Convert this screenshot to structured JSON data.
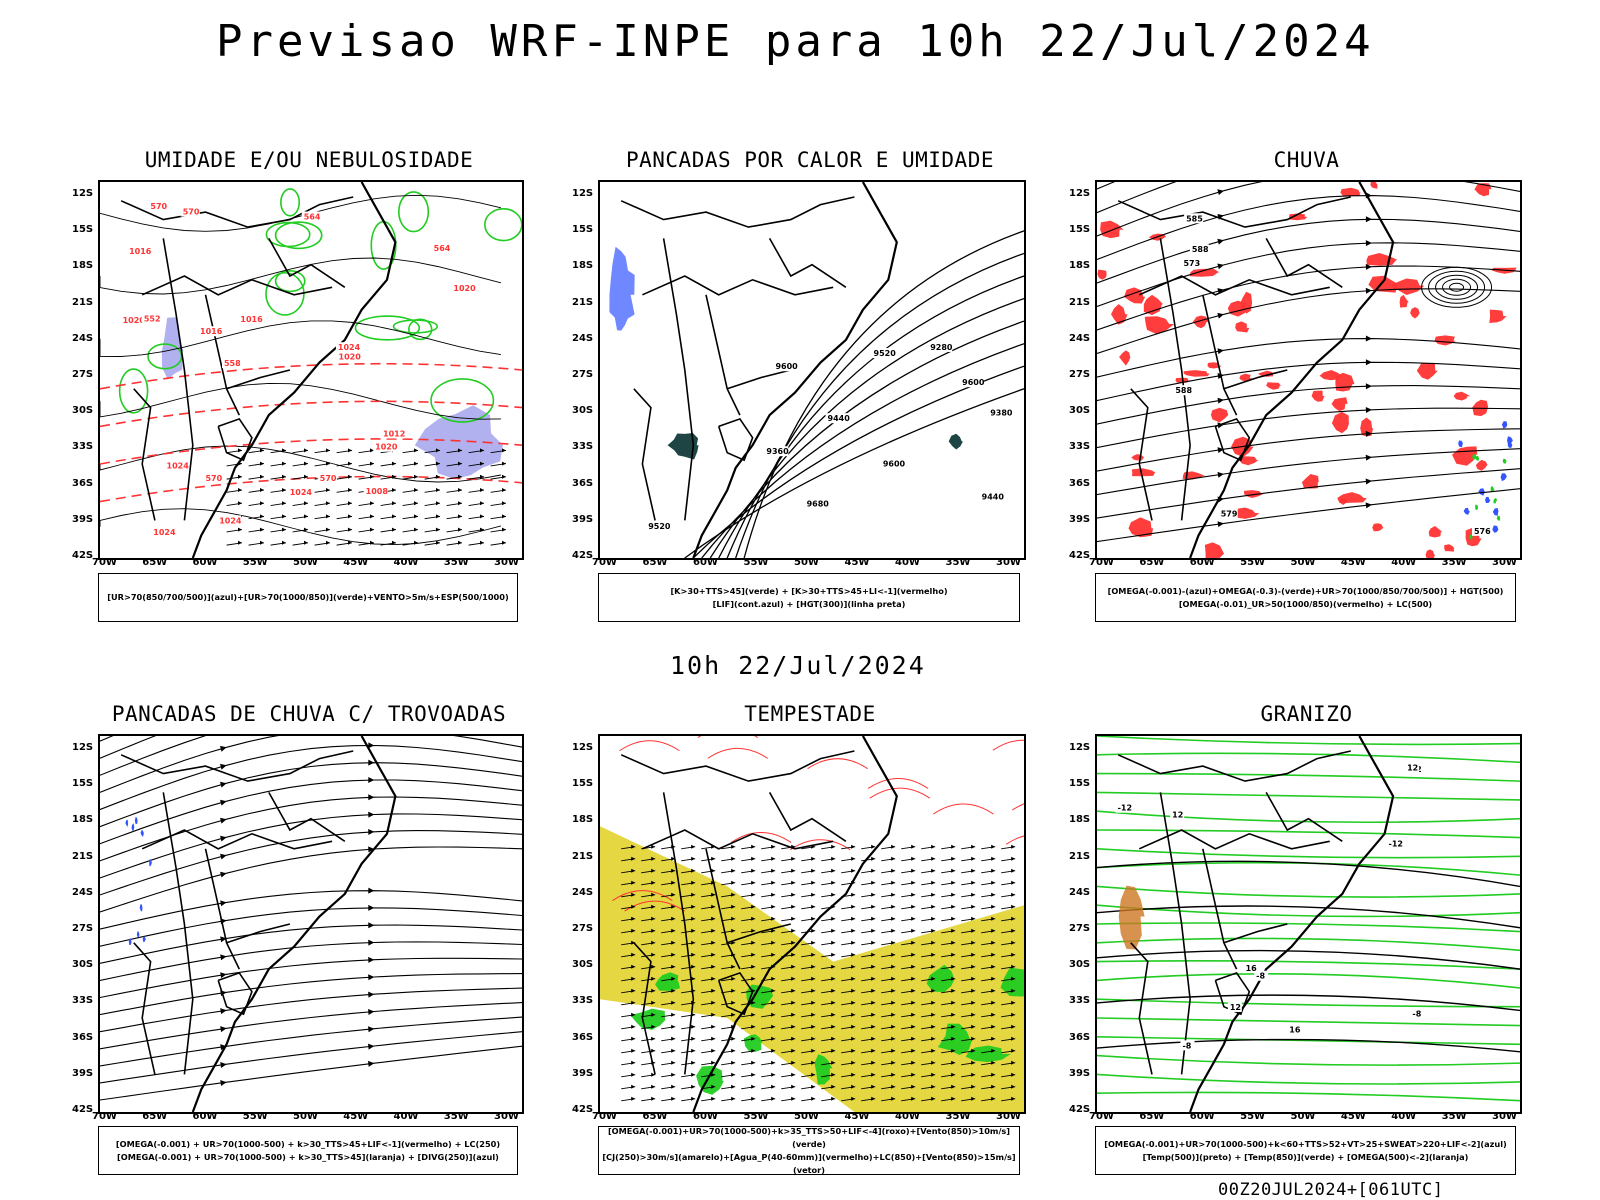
{
  "header": {
    "title": "Previsao WRF-INPE  para 10h 22/Jul/2024"
  },
  "middle_date": "10h 22/Jul/2024",
  "footer": "00Z20JUL2024+[061UTC]",
  "lat_labels": [
    "12S",
    "15S",
    "18S",
    "21S",
    "24S",
    "27S",
    "30S",
    "33S",
    "36S",
    "39S",
    "42S"
  ],
  "lon_labels": [
    "70W",
    "65W",
    "60W",
    "55W",
    "50W",
    "45W",
    "40W",
    "35W",
    "30W"
  ],
  "colors": {
    "red": "#ff3333",
    "green": "#22cc22",
    "blue": "#3355ff",
    "yellow": "#e0d020",
    "lavender": "#a8a8ee",
    "dark": "#1e4444",
    "orange": "#cc7722"
  },
  "panels": [
    {
      "title": "UMIDADE E/OU NEBULOSIDADE",
      "legend": [
        "[UR>70(850/700/500)](azul)+[UR>70(1000/850)](verde)+VENTO>5m/s+ESP(500/1000)"
      ],
      "contour_labels": [
        "1016",
        "1016",
        "1020",
        "1024",
        "1020",
        "1024",
        "1024",
        "1024",
        "1020",
        "1024",
        "1020",
        "1016",
        "1012",
        "1008",
        "570",
        "570",
        "570",
        "570",
        "564",
        "564",
        "558",
        "552"
      ]
    },
    {
      "title": "PANCADAS POR CALOR E UMIDADE",
      "legend": [
        "[K>30+TTS>45](verde) + [K>30+TTS>45+LI<-1](vermelho)",
        "[LIF](cont.azul) + [HGT(300)](linha preta)"
      ],
      "contour_labels": [
        "9680",
        "9520",
        "9440",
        "9600",
        "9600",
        "9600",
        "9380",
        "9280",
        "9520",
        "9440",
        "9360"
      ]
    },
    {
      "title": "CHUVA",
      "legend": [
        "[OMEGA(-0.001)-(azul)+OMEGA(-0.3)-(verde)+UR>70(1000/850/700/500)] + HGT(500)",
        "[OMEGA(-0.01)_UR>50(1000/850)(vermelho) + LC(500)"
      ],
      "contour_labels": [
        "588",
        "585",
        "588",
        "573",
        "579",
        "576"
      ]
    },
    {
      "title": "PANCADAS DE CHUVA C/ TROVOADAS",
      "legend": [
        "[OMEGA(-0.001) + UR>70(1000-500) + k>30_TTS>45+LIF<-1](vermelho) + LC(250)",
        "[OMEGA(-0.001) + UR>70(1000-500) + k>30_TTS>45](laranja) + [DIVG(250)](azul)"
      ],
      "contour_labels": []
    },
    {
      "title": "TEMPESTADE",
      "legend": [
        "[OMEGA(-0.001)+UR>70(1000-500)+k>35_TTS>50+LIF<-4](roxo)+[Vento(850)>10m/s](verde)",
        "[CJ(250)>30m/s](amarelo)+[Agua_P(40-60mm)](vermelho)+LC(850)+[Vento(850)>15m/s](vetor)"
      ],
      "contour_labels": []
    },
    {
      "title": "GRANIZO",
      "legend": [
        "[OMEGA(-0.001)+UR>70(1000-500)+k<60+TTS>52+VT>25+SWEAT>220+LIF<-2](azul)",
        "[Temp(500)](preto) + [Temp(850)](verde) + [OMEGA(500)<-2](laranja)"
      ],
      "contour_labels": [
        "-12",
        "-12",
        "-8",
        "-8",
        "-8",
        "12",
        "12",
        "16",
        "12",
        "12",
        "16"
      ]
    }
  ]
}
